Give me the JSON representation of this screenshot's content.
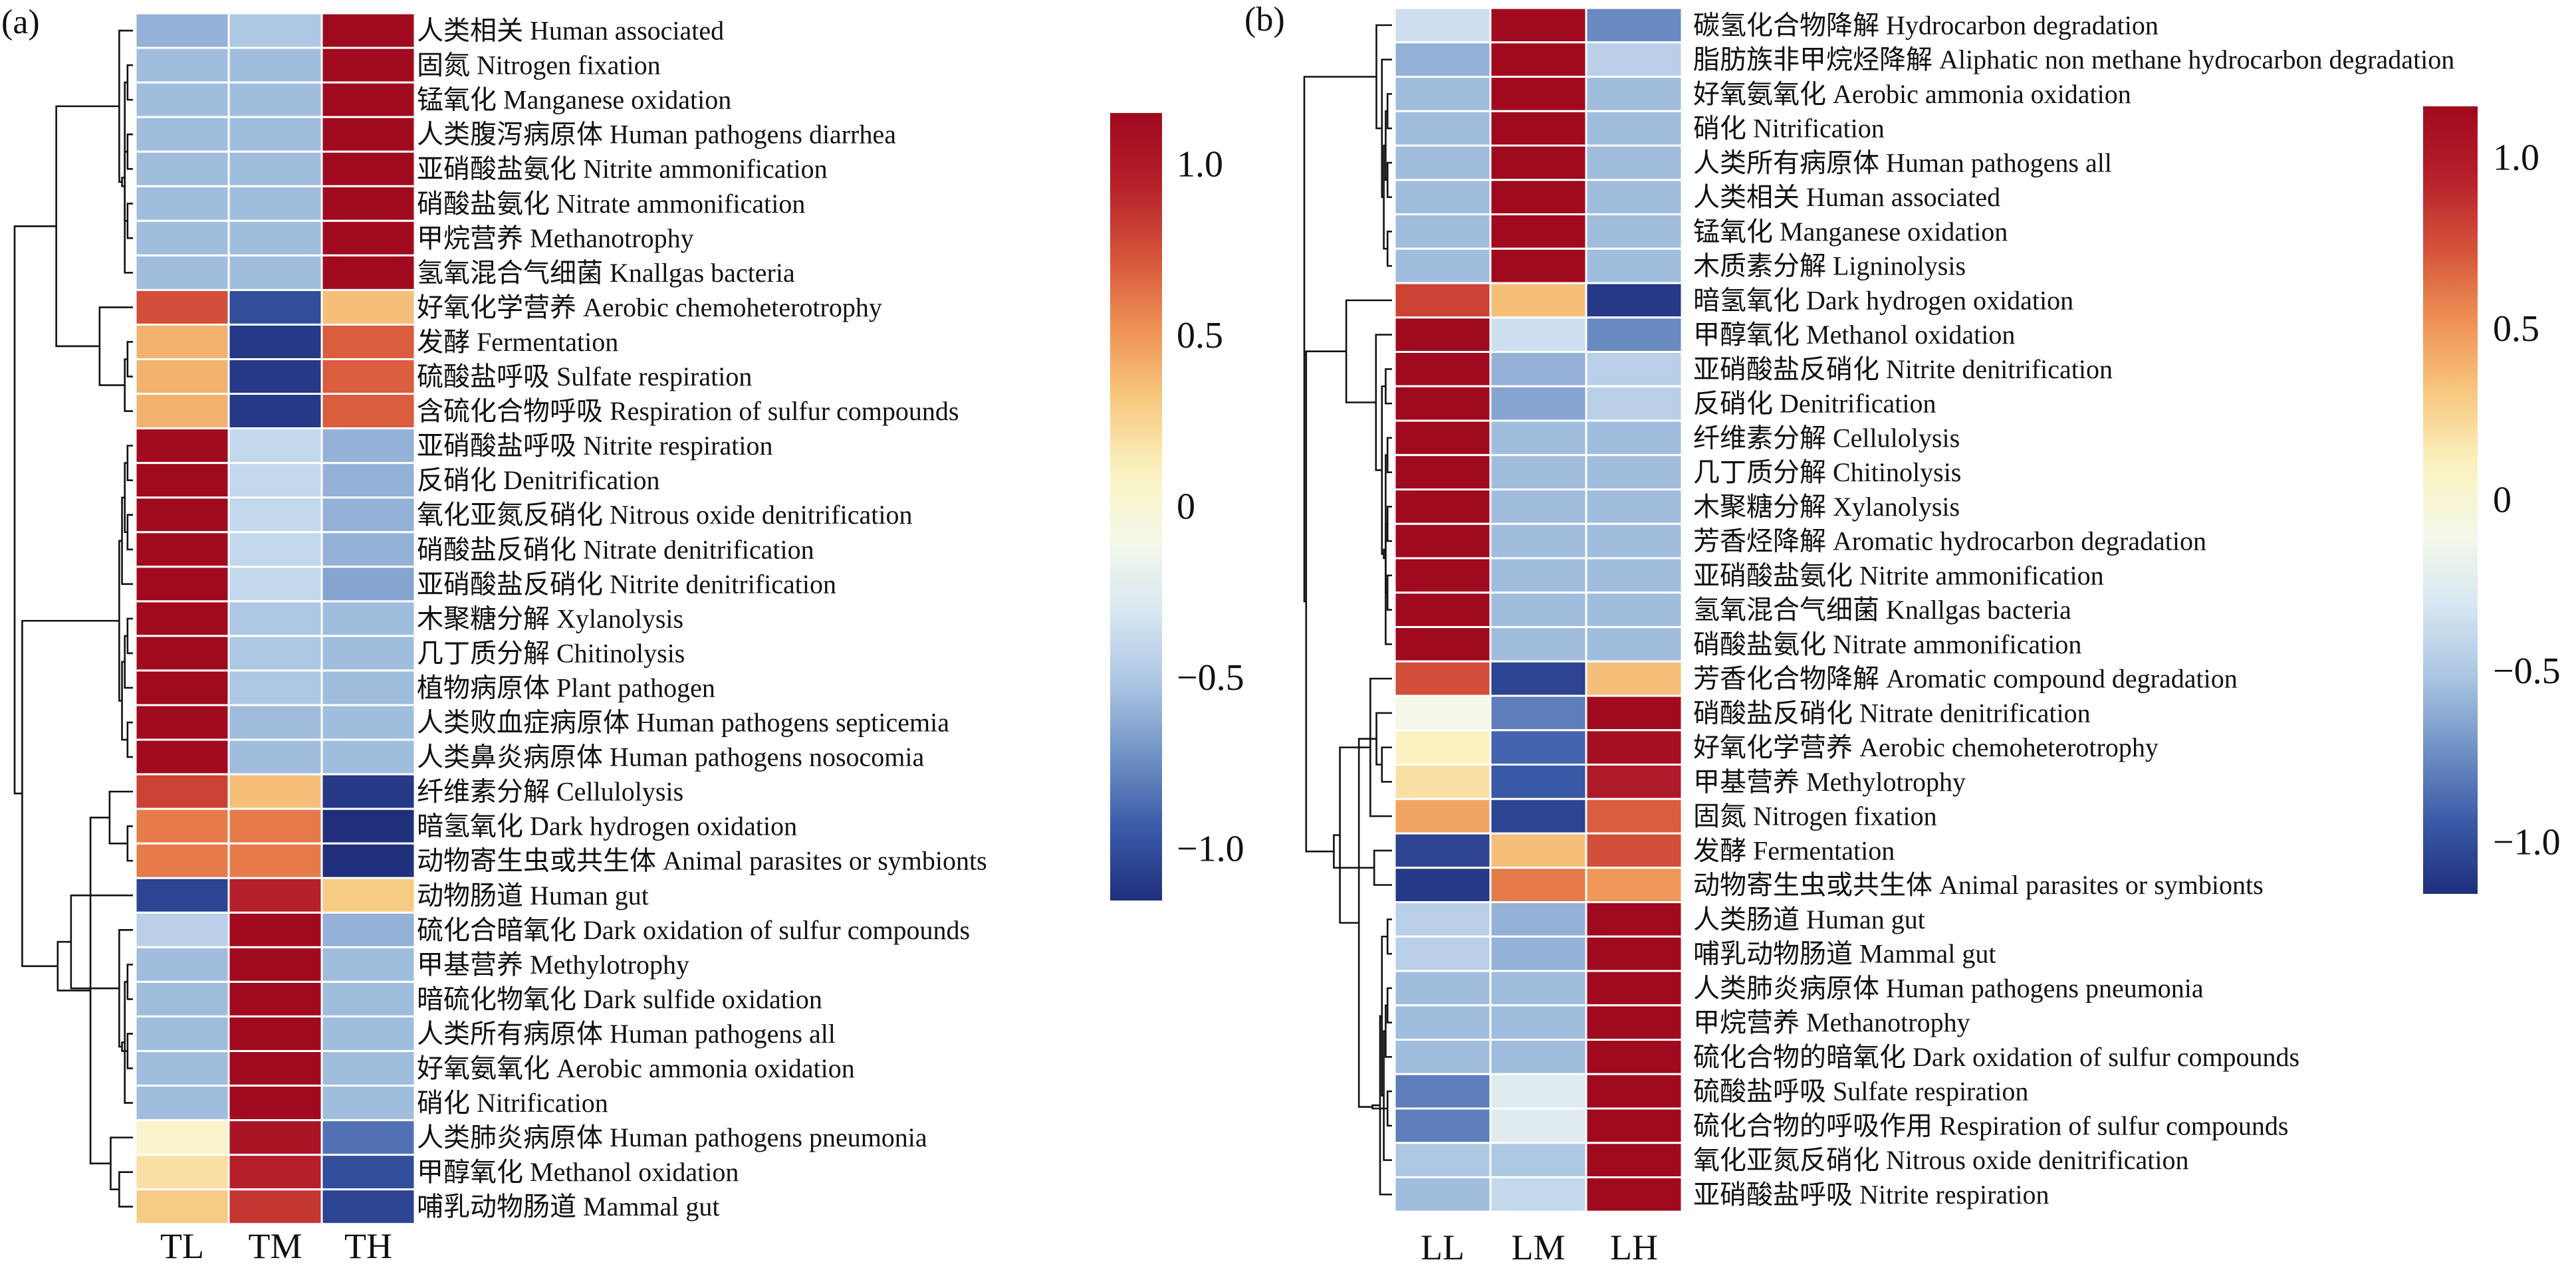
{
  "colors": {
    "scale": [
      "#1f2f7c",
      "#3a5aa7",
      "#6f90c4",
      "#a9c4e2",
      "#d6e6f2",
      "#f3f8e9",
      "#fbf2c0",
      "#f7c880",
      "#ee9255",
      "#d5533a",
      "#b5202b",
      "#a00a1f"
    ],
    "grid": "#ffffff",
    "tree": "#111111"
  },
  "chart_data": [
    {
      "type": "heatmap",
      "panel_label": "(a)",
      "columns": [
        "TL",
        "TM",
        "TH"
      ],
      "clim": [
        -1.15,
        1.15
      ],
      "colorbar_ticks": [
        {
          "value": 1.0,
          "label": "1.0"
        },
        {
          "value": 0.5,
          "label": "0.5"
        },
        {
          "value": 0,
          "label": "0"
        },
        {
          "value": -0.5,
          "label": "−0.5"
        },
        {
          "value": -1.0,
          "label": "−1.0"
        }
      ],
      "rows": [
        {
          "label": "人类相关 Human associated",
          "values": [
            -0.6,
            -0.5,
            1.15
          ]
        },
        {
          "label": "固氮 Nitrogen fixation",
          "values": [
            -0.55,
            -0.55,
            1.15
          ]
        },
        {
          "label": "锰氧化 Manganese oxidation",
          "values": [
            -0.55,
            -0.55,
            1.15
          ]
        },
        {
          "label": "人类腹泻病原体 Human pathogens diarrhea",
          "values": [
            -0.55,
            -0.55,
            1.15
          ]
        },
        {
          "label": "亚硝酸盐氨化 Nitrite ammonification",
          "values": [
            -0.55,
            -0.55,
            1.15
          ]
        },
        {
          "label": "硝酸盐氨化 Nitrate ammonification",
          "values": [
            -0.55,
            -0.55,
            1.15
          ]
        },
        {
          "label": "甲烷营养 Methanotrophy",
          "values": [
            -0.55,
            -0.55,
            1.15
          ]
        },
        {
          "label": "氢氧混合气细菌 Knallgas bacteria",
          "values": [
            -0.55,
            -0.55,
            1.15
          ]
        },
        {
          "label": "好氧化学营养 Aerobic chemoheterotrophy",
          "values": [
            0.75,
            -1.0,
            0.35
          ]
        },
        {
          "label": "发酵 Fermentation",
          "values": [
            0.4,
            -1.1,
            0.7
          ]
        },
        {
          "label": "硫酸盐呼吸 Sulfate respiration",
          "values": [
            0.4,
            -1.1,
            0.7
          ]
        },
        {
          "label": "含硫化合物呼吸 Respiration of sulfur compounds",
          "values": [
            0.4,
            -1.1,
            0.7
          ]
        },
        {
          "label": "亚硝酸盐呼吸 Nitrite respiration",
          "values": [
            1.15,
            -0.4,
            -0.6
          ]
        },
        {
          "label": "反硝化 Denitrification",
          "values": [
            1.15,
            -0.4,
            -0.6
          ]
        },
        {
          "label": "氧化亚氮反硝化 Nitrous oxide denitrification",
          "values": [
            1.15,
            -0.4,
            -0.6
          ]
        },
        {
          "label": "硝酸盐反硝化 Nitrate denitrification",
          "values": [
            1.15,
            -0.4,
            -0.6
          ]
        },
        {
          "label": "亚硝酸盐反硝化 Nitrite denitrification",
          "values": [
            1.15,
            -0.4,
            -0.65
          ]
        },
        {
          "label": "木聚糖分解 Xylanolysis",
          "values": [
            1.15,
            -0.5,
            -0.55
          ]
        },
        {
          "label": "几丁质分解 Chitinolysis",
          "values": [
            1.15,
            -0.5,
            -0.55
          ]
        },
        {
          "label": "植物病原体 Plant pathogen",
          "values": [
            1.15,
            -0.5,
            -0.55
          ]
        },
        {
          "label": "人类败血症病原体 Human pathogens septicemia",
          "values": [
            1.15,
            -0.55,
            -0.55
          ]
        },
        {
          "label": "人类鼻炎病原体 Human pathogens nosocomia",
          "values": [
            1.15,
            -0.55,
            -0.55
          ]
        },
        {
          "label": "纤维素分解 Cellulolysis",
          "values": [
            0.8,
            0.35,
            -1.1
          ]
        },
        {
          "label": "暗氢氧化 Dark hydrogen oxidation",
          "values": [
            0.6,
            0.6,
            -1.15
          ]
        },
        {
          "label": "动物寄生虫或共生体 Animal parasites or symbionts",
          "values": [
            0.6,
            0.6,
            -1.15
          ]
        },
        {
          "label": "动物肠道 Human gut",
          "values": [
            -1.05,
            0.95,
            0.3
          ]
        },
        {
          "label": "硫化合暗氧化 Dark oxidation of sulfur compounds",
          "values": [
            -0.45,
            1.15,
            -0.6
          ]
        },
        {
          "label": "甲基营养 Methylotrophy",
          "values": [
            -0.55,
            1.15,
            -0.55
          ]
        },
        {
          "label": "暗硫化物氧化 Dark sulfide oxidation",
          "values": [
            -0.55,
            1.15,
            -0.55
          ]
        },
        {
          "label": "人类所有病原体 Human pathogens all",
          "values": [
            -0.55,
            1.15,
            -0.55
          ]
        },
        {
          "label": "好氧氨氧化 Aerobic ammonia oxidation",
          "values": [
            -0.55,
            1.15,
            -0.55
          ]
        },
        {
          "label": "硝化 Nitrification",
          "values": [
            -0.55,
            1.15,
            -0.55
          ]
        },
        {
          "label": "人类肺炎病原体 Human pathogens pneumonia",
          "values": [
            0.05,
            1.05,
            -0.85
          ]
        },
        {
          "label": "甲醇氧化 Methanol oxidation",
          "values": [
            0.2,
            0.95,
            -1.0
          ]
        },
        {
          "label": "哺乳动物肠道 Mammal gut",
          "values": [
            0.3,
            0.85,
            -1.05
          ]
        }
      ]
    },
    {
      "type": "heatmap",
      "panel_label": "(b)",
      "columns": [
        "LL",
        "LM",
        "LH"
      ],
      "clim": [
        -1.15,
        1.15
      ],
      "colorbar_ticks": [
        {
          "value": 1.0,
          "label": "1.0"
        },
        {
          "value": 0.5,
          "label": "0.5"
        },
        {
          "value": 0,
          "label": "0"
        },
        {
          "value": -0.5,
          "label": "−0.5"
        },
        {
          "value": -1.0,
          "label": "−1.0"
        }
      ],
      "rows": [
        {
          "label": "碳氢化合物降解 Hydrocarbon degradation",
          "values": [
            -0.35,
            1.15,
            -0.75
          ]
        },
        {
          "label": "脂肪族非甲烷烃降解 Aliphatic non methane hydrocarbon degradation",
          "values": [
            -0.6,
            1.15,
            -0.45
          ]
        },
        {
          "label": "好氧氨氧化 Aerobic ammonia oxidation",
          "values": [
            -0.55,
            1.15,
            -0.55
          ]
        },
        {
          "label": "硝化 Nitrification",
          "values": [
            -0.55,
            1.15,
            -0.55
          ]
        },
        {
          "label": "人类所有病原体 Human pathogens all",
          "values": [
            -0.55,
            1.15,
            -0.55
          ]
        },
        {
          "label": "人类相关 Human associated",
          "values": [
            -0.55,
            1.15,
            -0.55
          ]
        },
        {
          "label": "锰氧化 Manganese oxidation",
          "values": [
            -0.55,
            1.15,
            -0.55
          ]
        },
        {
          "label": "木质素分解 Ligninolysis",
          "values": [
            -0.55,
            1.15,
            -0.55
          ]
        },
        {
          "label": "暗氢氧化 Dark hydrogen oxidation",
          "values": [
            0.8,
            0.35,
            -1.1
          ]
        },
        {
          "label": "甲醇氧化 Methanol oxidation",
          "values": [
            1.15,
            -0.35,
            -0.75
          ]
        },
        {
          "label": "亚硝酸盐反硝化 Nitrite denitrification",
          "values": [
            1.15,
            -0.6,
            -0.45
          ]
        },
        {
          "label": "反硝化 Denitrification",
          "values": [
            1.15,
            -0.65,
            -0.45
          ]
        },
        {
          "label": "纤维素分解 Cellulolysis",
          "values": [
            1.15,
            -0.55,
            -0.55
          ]
        },
        {
          "label": "几丁质分解 Chitinolysis",
          "values": [
            1.15,
            -0.55,
            -0.55
          ]
        },
        {
          "label": "木聚糖分解 Xylanolysis",
          "values": [
            1.15,
            -0.55,
            -0.55
          ]
        },
        {
          "label": "芳香烃降解 Aromatic hydrocarbon degradation",
          "values": [
            1.15,
            -0.55,
            -0.55
          ]
        },
        {
          "label": "亚硝酸盐氨化 Nitrite ammonification",
          "values": [
            1.15,
            -0.55,
            -0.55
          ]
        },
        {
          "label": "氢氧混合气细菌 Knallgas bacteria",
          "values": [
            1.15,
            -0.55,
            -0.55
          ]
        },
        {
          "label": "硝酸盐氨化 Nitrate ammonification",
          "values": [
            1.15,
            -0.55,
            -0.55
          ]
        },
        {
          "label": "芳香化合物降解 Aromatic compound degradation",
          "values": [
            0.75,
            -1.05,
            0.35
          ]
        },
        {
          "label": "硝酸盐反硝化 Nitrate denitrification",
          "values": [
            -0.1,
            -0.8,
            1.15
          ]
        },
        {
          "label": "好氧化学营养 Aerobic chemoheterotrophy",
          "values": [
            0.1,
            -0.9,
            1.1
          ]
        },
        {
          "label": "甲基营养 Methylotrophy",
          "values": [
            0.2,
            -0.95,
            1.0
          ]
        },
        {
          "label": "固氮 Nitrogen fixation",
          "values": [
            0.45,
            -1.05,
            0.7
          ]
        },
        {
          "label": "发酵 Fermentation",
          "values": [
            -1.05,
            0.35,
            0.75
          ]
        },
        {
          "label": "动物寄生虫或共生体 Animal parasites or symbionts",
          "values": [
            -1.1,
            0.6,
            0.5
          ]
        },
        {
          "label": "人类肠道 Human gut",
          "values": [
            -0.45,
            -0.6,
            1.15
          ]
        },
        {
          "label": "哺乳动物肠道 Mammal gut",
          "values": [
            -0.45,
            -0.6,
            1.15
          ]
        },
        {
          "label": "人类肺炎病原体 Human pathogens pneumonia",
          "values": [
            -0.55,
            -0.55,
            1.15
          ]
        },
        {
          "label": "甲烷营养 Methanotrophy",
          "values": [
            -0.55,
            -0.55,
            1.15
          ]
        },
        {
          "label": "硫化合物的暗氧化 Dark oxidation of sulfur compounds",
          "values": [
            -0.55,
            -0.55,
            1.15
          ]
        },
        {
          "label": "硫酸盐呼吸 Sulfate respiration",
          "values": [
            -0.8,
            -0.25,
            1.15
          ]
        },
        {
          "label": "硫化合物的呼吸作用 Respiration of sulfur compounds",
          "values": [
            -0.8,
            -0.25,
            1.15
          ]
        },
        {
          "label": "氧化亚氮反硝化 Nitrous oxide denitrification",
          "values": [
            -0.5,
            -0.5,
            1.15
          ]
        },
        {
          "label": "亚硝酸盐呼吸 Nitrite respiration",
          "values": [
            -0.55,
            -0.4,
            1.15
          ]
        }
      ]
    }
  ]
}
